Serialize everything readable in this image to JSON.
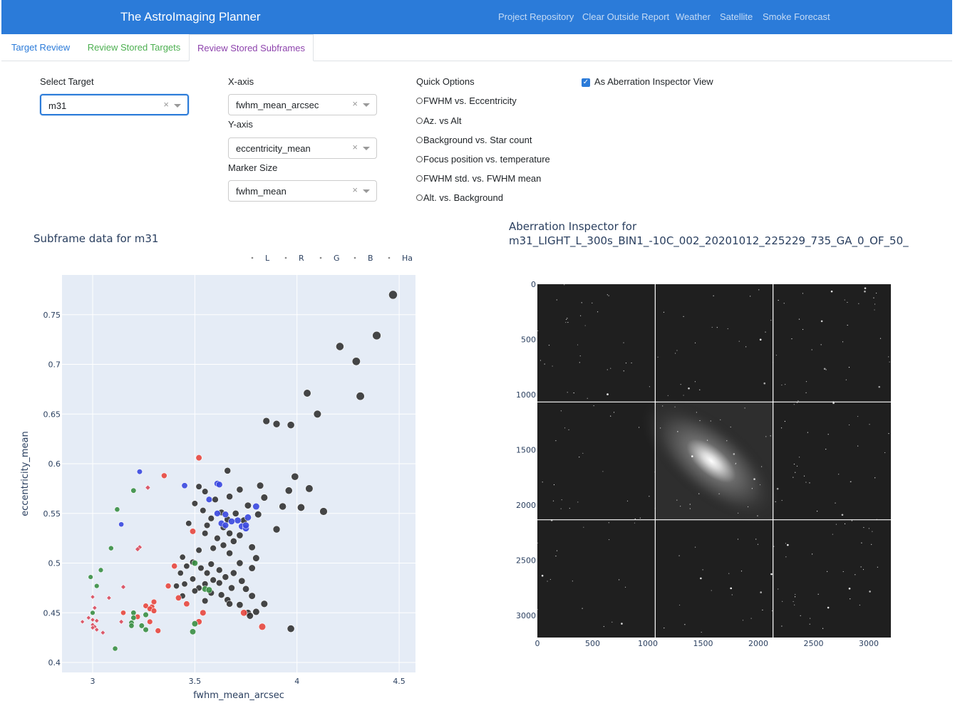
{
  "navbar": {
    "brand": "The AstroImaging Planner",
    "links": [
      "Project Repository",
      "Clear Outside Report",
      "Weather",
      "Satellite",
      "Smoke Forecast"
    ]
  },
  "tabs": [
    {
      "label": "Target Review",
      "color": "#2b7bd9"
    },
    {
      "label": "Review Stored Targets",
      "color": "#4caf50"
    },
    {
      "label": "Review Stored Subframes",
      "color": "#8e44ad",
      "active": true
    }
  ],
  "controls": {
    "select_target": {
      "label": "Select Target",
      "value": "m31",
      "clear": "×"
    },
    "x_axis": {
      "label": "X-axis",
      "value": "fwhm_mean_arcsec",
      "clear": "×"
    },
    "y_axis": {
      "label": "Y-axis",
      "value": "eccentricity_mean",
      "clear": "×"
    },
    "marker_size": {
      "label": "Marker Size",
      "value": "fwhm_mean",
      "clear": "×"
    },
    "quick_options": {
      "label": "Quick Options",
      "items": [
        "FWHM vs. Eccentricity",
        "Az. vs Alt",
        "Background vs. Star count",
        "Focus position vs. temperature",
        "FWHM std. vs. FWHM mean",
        "Alt. vs. Background"
      ]
    },
    "aberration_checkbox": {
      "label": "As Aberration Inspector View",
      "checked": true
    }
  },
  "scatter": {
    "title": "Subframe data for m31"
  },
  "chart_data": [
    {
      "type": "scatter",
      "title": "Subframe data for m31",
      "xlabel": "fwhm_mean_arcsec",
      "ylabel": "eccentricity_mean",
      "xlim": [
        2.85,
        4.58
      ],
      "ylim": [
        0.39,
        0.79
      ],
      "xticks": [
        "3",
        "3.5",
        "4",
        "4.5"
      ],
      "yticks": [
        "0.4",
        "0.45",
        "0.5",
        "0.55",
        "0.6",
        "0.65",
        "0.7",
        "0.75"
      ],
      "legend_position": "top",
      "grid": true,
      "background": "#e5ecf6",
      "series": [
        {
          "name": "L",
          "color": "#333333",
          "symbol": "circle",
          "points": [
            [
              4.47,
              0.77
            ],
            [
              4.39,
              0.729
            ],
            [
              4.21,
              0.718
            ],
            [
              4.29,
              0.703
            ],
            [
              4.31,
              0.668
            ],
            [
              4.05,
              0.671
            ],
            [
              4.1,
              0.65
            ],
            [
              3.85,
              0.643
            ],
            [
              3.9,
              0.64
            ],
            [
              3.97,
              0.639
            ],
            [
              3.66,
              0.593
            ],
            [
              3.99,
              0.587
            ],
            [
              3.52,
              0.577
            ],
            [
              3.82,
              0.578
            ],
            [
              3.72,
              0.574
            ],
            [
              4.06,
              0.575
            ],
            [
              3.55,
              0.572
            ],
            [
              3.96,
              0.573
            ],
            [
              3.67,
              0.567
            ],
            [
              3.84,
              0.566
            ],
            [
              3.6,
              0.564
            ],
            [
              3.5,
              0.56
            ],
            [
              3.76,
              0.558
            ],
            [
              3.93,
              0.557
            ],
            [
              4.02,
              0.556
            ],
            [
              3.54,
              0.553
            ],
            [
              3.63,
              0.551
            ],
            [
              3.7,
              0.55
            ],
            [
              3.81,
              0.549
            ],
            [
              4.13,
              0.552
            ],
            [
              3.58,
              0.545
            ],
            [
              3.66,
              0.544
            ],
            [
              3.74,
              0.543
            ],
            [
              3.47,
              0.54
            ],
            [
              3.56,
              0.538
            ],
            [
              3.64,
              0.536
            ],
            [
              3.55,
              0.53
            ],
            [
              3.67,
              0.53
            ],
            [
              3.9,
              0.534
            ],
            [
              3.72,
              0.528
            ],
            [
              3.61,
              0.525
            ],
            [
              3.69,
              0.522
            ],
            [
              3.64,
              0.518
            ],
            [
              3.59,
              0.515
            ],
            [
              3.78,
              0.516
            ],
            [
              3.52,
              0.513
            ],
            [
              3.44,
              0.506
            ],
            [
              3.67,
              0.51
            ],
            [
              3.8,
              0.505
            ],
            [
              3.49,
              0.501
            ],
            [
              3.58,
              0.499
            ],
            [
              3.72,
              0.5
            ],
            [
              3.46,
              0.497
            ],
            [
              3.53,
              0.495
            ],
            [
              3.62,
              0.493
            ],
            [
              3.43,
              0.49
            ],
            [
              3.56,
              0.49
            ],
            [
              3.69,
              0.49
            ],
            [
              3.78,
              0.495
            ],
            [
              3.65,
              0.486
            ],
            [
              3.49,
              0.484
            ],
            [
              3.59,
              0.483
            ],
            [
              3.73,
              0.482
            ],
            [
              3.45,
              0.479
            ],
            [
              3.55,
              0.479
            ],
            [
              3.62,
              0.48
            ],
            [
              3.41,
              0.477
            ],
            [
              3.52,
              0.475
            ],
            [
              3.68,
              0.475
            ],
            [
              3.75,
              0.474
            ],
            [
              3.5,
              0.472
            ],
            [
              3.58,
              0.47
            ],
            [
              3.63,
              0.468
            ],
            [
              3.44,
              0.467
            ],
            [
              3.55,
              0.462
            ],
            [
              3.66,
              0.463
            ],
            [
              3.78,
              0.467
            ],
            [
              3.72,
              0.458
            ],
            [
              3.67,
              0.459
            ],
            [
              3.84,
              0.459
            ],
            [
              3.76,
              0.45
            ],
            [
              3.8,
              0.451
            ],
            [
              3.77,
              0.447
            ],
            [
              3.97,
              0.434
            ]
          ]
        },
        {
          "name": "R",
          "color": "#e8473f",
          "symbol": "circle",
          "points": [
            [
              3.52,
              0.606
            ],
            [
              3.35,
              0.588
            ],
            [
              3.49,
              0.532
            ],
            [
              3.4,
              0.497
            ],
            [
              3.37,
              0.477
            ],
            [
              3.42,
              0.465
            ],
            [
              3.46,
              0.459
            ],
            [
              3.26,
              0.457
            ],
            [
              3.29,
              0.456
            ],
            [
              3.3,
              0.461
            ],
            [
              3.28,
              0.454
            ],
            [
              3.54,
              0.45
            ],
            [
              3.15,
              0.45
            ],
            [
              3.22,
              0.446
            ],
            [
              3.28,
              0.441
            ],
            [
              3.32,
              0.432
            ],
            [
              3.52,
              0.441
            ],
            [
              3.83,
              0.436
            ],
            [
              3.74,
              0.45
            ],
            [
              3.3,
              0.452
            ]
          ]
        },
        {
          "name": "R-diamond",
          "color": "#d94a5b",
          "symbol": "diamond",
          "points": [
            [
              3.27,
              0.576
            ],
            [
              3.23,
              0.516
            ],
            [
              3.22,
              0.514
            ],
            [
              3.15,
              0.476
            ],
            [
              3.08,
              0.465
            ],
            [
              3.0,
              0.466
            ],
            [
              3.01,
              0.455
            ],
            [
              2.95,
              0.441
            ],
            [
              3.0,
              0.443
            ],
            [
              3.02,
              0.442
            ],
            [
              3.0,
              0.438
            ],
            [
              3.01,
              0.436
            ],
            [
              3.02,
              0.433
            ],
            [
              3.05,
              0.43
            ],
            [
              3.14,
              0.441
            ],
            [
              3.0,
              0.435
            ],
            [
              2.98,
              0.445
            ]
          ]
        },
        {
          "name": "G",
          "color": "#3a8f44",
          "symbol": "circle",
          "points": [
            [
              3.2,
              0.573
            ],
            [
              3.12,
              0.554
            ],
            [
              3.09,
              0.515
            ],
            [
              3.04,
              0.493
            ],
            [
              2.99,
              0.486
            ],
            [
              3.02,
              0.477
            ],
            [
              3.5,
              0.5
            ],
            [
              3.55,
              0.474
            ],
            [
              3.57,
              0.473
            ],
            [
              3.2,
              0.45
            ],
            [
              3.26,
              0.448
            ],
            [
              3.2,
              0.445
            ],
            [
              3.19,
              0.44
            ],
            [
              3.24,
              0.437
            ],
            [
              3.26,
              0.433
            ],
            [
              3.19,
              0.437
            ],
            [
              3.5,
              0.439
            ],
            [
              3.49,
              0.431
            ],
            [
              3.11,
              0.414
            ],
            [
              3.0,
              0.45
            ]
          ]
        },
        {
          "name": "B",
          "color": "#3a48e0",
          "symbol": "circle",
          "points": [
            [
              3.23,
              0.592
            ],
            [
              3.45,
              0.578
            ],
            [
              3.61,
              0.58
            ],
            [
              3.62,
              0.579
            ],
            [
              3.57,
              0.564
            ],
            [
              3.8,
              0.557
            ],
            [
              3.61,
              0.55
            ],
            [
              3.65,
              0.549
            ],
            [
              3.76,
              0.546
            ],
            [
              3.71,
              0.543
            ],
            [
              3.68,
              0.542
            ],
            [
              3.63,
              0.54
            ],
            [
              3.73,
              0.537
            ],
            [
              3.75,
              0.535
            ],
            [
              3.65,
              0.538
            ],
            [
              3.75,
              0.538
            ],
            [
              3.14,
              0.539
            ]
          ]
        },
        {
          "name": "Ha",
          "color": "#555555",
          "symbol": "circle",
          "points": []
        }
      ],
      "legend": [
        "L",
        "R",
        "G",
        "B",
        "Ha"
      ]
    },
    {
      "type": "heatmap",
      "title": "Aberration Inspector for m31_LIGHT_L_300s_BIN1_-10C_002_20201012_225229_735_GA_0_OF_50_",
      "title_lines": [
        "Aberration Inspector for",
        "m31_LIGHT_L_300s_BIN1_-10C_002_20201012_225229_735_GA_0_OF_50_"
      ],
      "colorscale": "grayscale",
      "xlim": [
        0,
        3200
      ],
      "ylim": [
        3200,
        0
      ],
      "xticks": [
        "0",
        "500",
        "1000",
        "1500",
        "2000",
        "2500",
        "3000"
      ],
      "yticks": [
        "0",
        "500",
        "1000",
        "1500",
        "2000",
        "2500",
        "3000"
      ],
      "grid_cells": 3
    }
  ]
}
